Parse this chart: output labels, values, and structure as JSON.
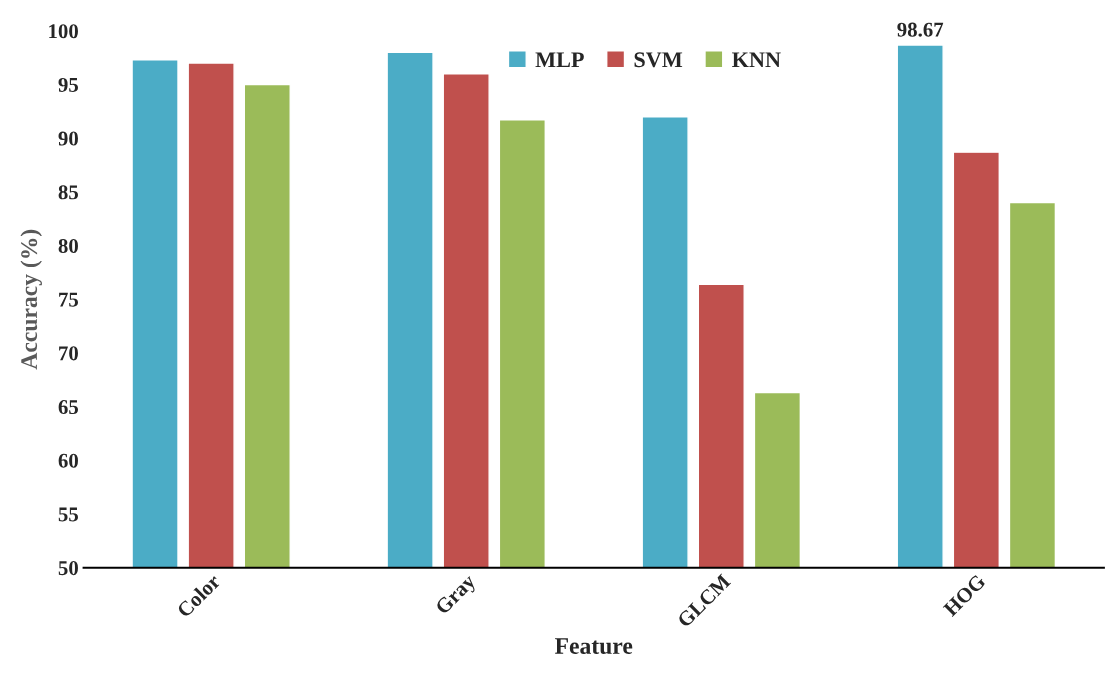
{
  "chart_data": {
    "type": "bar",
    "xlabel": "Feature",
    "ylabel": "Accuracy (%)",
    "categories": [
      "Color",
      "Gray",
      "GLCM",
      "HOG"
    ],
    "series": [
      {
        "name": "MLP",
        "color": "#4bacc6",
        "values": [
          97.3,
          98.0,
          92.0,
          98.67
        ],
        "value_labels": [
          null,
          null,
          null,
          "98.67"
        ]
      },
      {
        "name": "SVM",
        "color": "#c0504d",
        "values": [
          97.0,
          96.0,
          76.4,
          88.7
        ]
      },
      {
        "name": "KNN",
        "color": "#9bbb59",
        "values": [
          95.0,
          91.7,
          66.3,
          84.0
        ]
      }
    ],
    "ylim": [
      50,
      100
    ],
    "yticks": [
      50,
      55,
      60,
      65,
      70,
      75,
      80,
      85,
      90,
      95,
      100
    ],
    "grid": false,
    "legend": "top"
  }
}
